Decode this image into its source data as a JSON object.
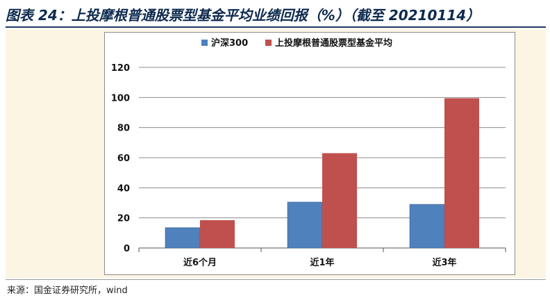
{
  "header": {
    "title": "图表 24：上投摩根普通股票型基金平均业绩回报（%）（截至 20210114）"
  },
  "footer": {
    "source": "来源：国金证券研究所，wind"
  },
  "chart_data": {
    "type": "bar",
    "categories": [
      "近6个月",
      "近1年",
      "近3年"
    ],
    "series": [
      {
        "name": "沪深300",
        "values": [
          13.5,
          30.5,
          29
        ],
        "color": "#4f81bd"
      },
      {
        "name": "上投摩根普通股票型基金平均",
        "values": [
          18.5,
          63,
          99.5
        ],
        "color": "#c0504d"
      }
    ],
    "ylim": [
      0,
      120
    ],
    "yticks": [
      0,
      20,
      40,
      60,
      80,
      100,
      120
    ],
    "grid": true,
    "legend": "top"
  }
}
